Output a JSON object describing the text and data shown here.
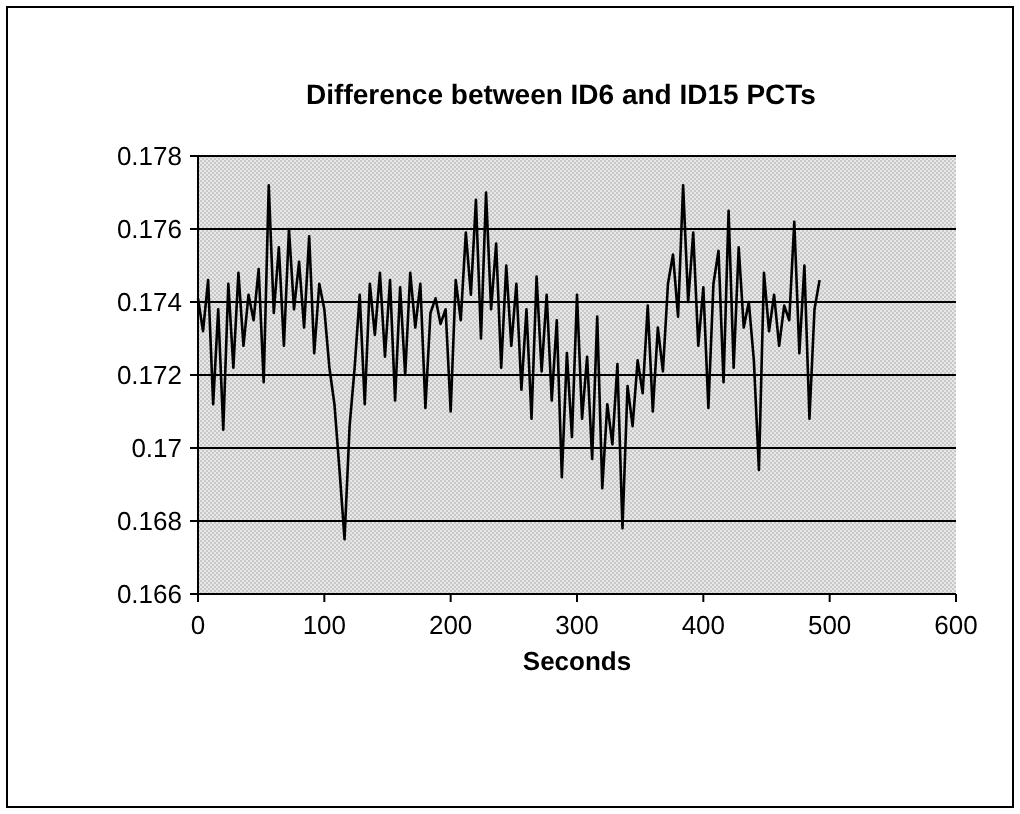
{
  "chart_data": {
    "type": "line",
    "title": "Difference between ID6 and ID15 PCTs",
    "xlabel": "Seconds",
    "xlim": [
      0,
      600
    ],
    "xticks": [
      0,
      100,
      200,
      300,
      400,
      500,
      600
    ],
    "ylim": [
      0.166,
      0.178
    ],
    "yticks": [
      0.166,
      0.168,
      0.17,
      0.172,
      0.174,
      0.176,
      0.178
    ],
    "grid": "y",
    "marker": "none",
    "line_style": "solid",
    "x": [
      0,
      4,
      8,
      12,
      16,
      20,
      24,
      28,
      32,
      36,
      40,
      44,
      48,
      52,
      56,
      60,
      64,
      68,
      72,
      76,
      80,
      84,
      88,
      92,
      96,
      100,
      104,
      108,
      112,
      116,
      120,
      124,
      128,
      132,
      136,
      140,
      144,
      148,
      152,
      156,
      160,
      164,
      168,
      172,
      176,
      180,
      184,
      188,
      192,
      196,
      200,
      204,
      208,
      212,
      216,
      220,
      224,
      228,
      232,
      236,
      240,
      244,
      248,
      252,
      256,
      260,
      264,
      268,
      272,
      276,
      280,
      284,
      288,
      292,
      296,
      300,
      304,
      308,
      312,
      316,
      320,
      324,
      328,
      332,
      336,
      340,
      344,
      348,
      352,
      356,
      360,
      364,
      368,
      372,
      376,
      380,
      384,
      388,
      392,
      396,
      400,
      404,
      408,
      412,
      416,
      420,
      424,
      428,
      432,
      436,
      440,
      444,
      448,
      452,
      456,
      460,
      464,
      468,
      472,
      476,
      480,
      484,
      488,
      492
    ],
    "series": [
      {
        "color": "#000000",
        "values": [
          0.1741,
          0.1732,
          0.1746,
          0.1712,
          0.1738,
          0.1705,
          0.1745,
          0.1722,
          0.1748,
          0.1728,
          0.1742,
          0.1735,
          0.1749,
          0.1718,
          0.1772,
          0.1737,
          0.1755,
          0.1728,
          0.176,
          0.1738,
          0.1751,
          0.1733,
          0.1758,
          0.1726,
          0.1745,
          0.1738,
          0.1722,
          0.1712,
          0.1694,
          0.1675,
          0.1706,
          0.1722,
          0.1742,
          0.1712,
          0.1745,
          0.1731,
          0.1748,
          0.1725,
          0.1746,
          0.1713,
          0.1744,
          0.172,
          0.1748,
          0.1733,
          0.1745,
          0.1711,
          0.1737,
          0.1741,
          0.1734,
          0.1738,
          0.171,
          0.1746,
          0.1735,
          0.1759,
          0.1742,
          0.1768,
          0.173,
          0.177,
          0.1738,
          0.1756,
          0.1722,
          0.175,
          0.1728,
          0.1745,
          0.1716,
          0.1738,
          0.1708,
          0.1747,
          0.1721,
          0.1742,
          0.1713,
          0.1735,
          0.1692,
          0.1726,
          0.1703,
          0.1742,
          0.1708,
          0.1725,
          0.1697,
          0.1736,
          0.1689,
          0.1712,
          0.1701,
          0.1723,
          0.1678,
          0.1717,
          0.1706,
          0.1724,
          0.1715,
          0.1739,
          0.171,
          0.1733,
          0.1721,
          0.1745,
          0.1753,
          0.1736,
          0.1772,
          0.174,
          0.1759,
          0.1728,
          0.1744,
          0.1711,
          0.1745,
          0.1754,
          0.1718,
          0.1765,
          0.1722,
          0.1755,
          0.1733,
          0.174,
          0.1724,
          0.1694,
          0.1748,
          0.1732,
          0.1742,
          0.1728,
          0.1739,
          0.1735,
          0.1762,
          0.1726,
          0.175,
          0.1708,
          0.1738,
          0.1746
        ]
      }
    ]
  }
}
